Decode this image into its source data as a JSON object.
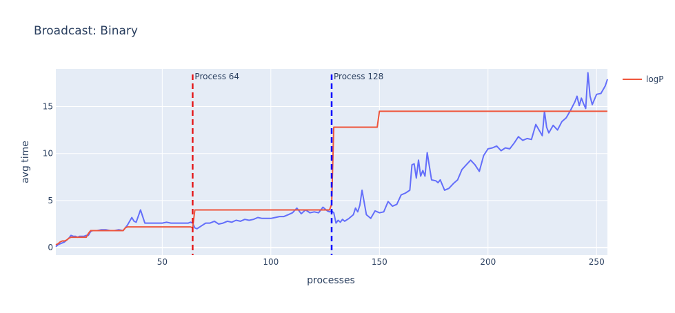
{
  "chart_data": {
    "type": "line",
    "title": "Broadcast: Binary",
    "xlabel": "processes",
    "ylabel": "avg time",
    "xlim": [
      1,
      255
    ],
    "ylim": [
      -0.8,
      19
    ],
    "x_ticks": [
      50,
      100,
      150,
      200,
      250
    ],
    "y_ticks": [
      0,
      5,
      10,
      15
    ],
    "grid": true,
    "legend": {
      "placement": "top-right",
      "entries": [
        "logP"
      ]
    },
    "colors": {
      "series_blue": "#636efa",
      "logP": "#ef553b",
      "plot_bg": "#e5ecf6",
      "vline_64": "#e41a1c",
      "vline_128": "#0000ff"
    },
    "series": [
      {
        "color": "#636efa",
        "x": [
          1,
          2,
          3,
          4,
          5,
          6,
          7,
          8,
          9,
          10,
          11,
          12,
          13,
          14,
          15,
          16,
          17,
          18,
          19,
          20,
          22,
          24,
          26,
          28,
          30,
          32,
          34,
          36,
          37,
          38,
          40,
          42,
          44,
          46,
          48,
          50,
          52,
          54,
          56,
          58,
          60,
          62,
          63,
          64,
          65,
          66,
          68,
          70,
          72,
          74,
          76,
          78,
          80,
          82,
          84,
          86,
          88,
          90,
          92,
          94,
          96,
          98,
          100,
          102,
          104,
          106,
          108,
          110,
          112,
          114,
          116,
          118,
          120,
          122,
          124,
          126,
          127,
          128,
          129,
          130,
          131,
          132,
          133,
          134,
          136,
          137,
          138,
          139,
          140,
          141,
          142,
          144,
          146,
          148,
          150,
          152,
          154,
          156,
          158,
          160,
          162,
          164,
          165,
          166,
          167,
          168,
          169,
          170,
          171,
          172,
          174,
          176,
          177,
          178,
          180,
          182,
          184,
          186,
          188,
          190,
          192,
          194,
          196,
          198,
          200,
          202,
          204,
          206,
          208,
          210,
          212,
          214,
          216,
          218,
          220,
          222,
          224,
          225,
          226,
          227,
          228,
          230,
          232,
          234,
          236,
          238,
          240,
          241,
          242,
          243,
          244,
          245,
          246,
          247,
          248,
          250,
          252,
          254,
          255
        ],
        "y": [
          0.1,
          0.3,
          0.4,
          0.5,
          0.6,
          0.8,
          1.0,
          1.3,
          1.2,
          1.2,
          1.1,
          1.2,
          1.2,
          1.2,
          1.3,
          1.3,
          1.7,
          1.8,
          1.8,
          1.8,
          1.9,
          1.9,
          1.8,
          1.8,
          1.9,
          1.8,
          2.4,
          3.2,
          2.8,
          2.7,
          4.0,
          2.6,
          2.6,
          2.6,
          2.6,
          2.6,
          2.7,
          2.6,
          2.6,
          2.6,
          2.6,
          2.6,
          2.7,
          2.6,
          2.1,
          2.0,
          2.3,
          2.6,
          2.6,
          2.8,
          2.5,
          2.6,
          2.8,
          2.7,
          2.9,
          2.8,
          3.0,
          2.9,
          3.0,
          3.2,
          3.1,
          3.1,
          3.1,
          3.2,
          3.3,
          3.3,
          3.5,
          3.7,
          4.2,
          3.6,
          4.0,
          3.7,
          3.8,
          3.7,
          4.3,
          3.9,
          3.8,
          3.9,
          3.7,
          2.6,
          2.9,
          2.7,
          3.0,
          2.8,
          3.1,
          3.3,
          3.5,
          4.2,
          3.8,
          4.5,
          6.1,
          3.5,
          3.1,
          3.9,
          3.7,
          3.8,
          4.9,
          4.4,
          4.6,
          5.6,
          5.8,
          6.1,
          8.8,
          8.9,
          7.4,
          9.3,
          7.6,
          8.2,
          7.6,
          10.1,
          7.2,
          7.1,
          6.9,
          7.2,
          6.1,
          6.3,
          6.8,
          7.2,
          8.3,
          8.8,
          9.3,
          8.8,
          8.1,
          9.8,
          10.5,
          10.6,
          10.8,
          10.3,
          10.6,
          10.5,
          11.1,
          11.8,
          11.4,
          11.6,
          11.5,
          13.1,
          12.3,
          11.9,
          14.5,
          12.8,
          12.2,
          13.0,
          12.5,
          13.4,
          13.8,
          14.6,
          15.5,
          16.1,
          15.1,
          15.9,
          15.3,
          14.8,
          18.6,
          16.1,
          15.2,
          16.3,
          16.4,
          17.2,
          17.9
        ]
      },
      {
        "name": "logP",
        "color": "#ef553b",
        "x": [
          1,
          2,
          3,
          4,
          5,
          6,
          7,
          8,
          9,
          10,
          11,
          12,
          13,
          14,
          15,
          16,
          17,
          18,
          19,
          20,
          32,
          33,
          34,
          63,
          64,
          65,
          127,
          128,
          129,
          149,
          150,
          255
        ],
        "y": [
          0.3,
          0.4,
          0.6,
          0.7,
          0.7,
          0.8,
          1.0,
          1.1,
          1.1,
          1.1,
          1.1,
          1.1,
          1.1,
          1.1,
          1.1,
          1.5,
          1.8,
          1.8,
          1.8,
          1.8,
          1.8,
          2.1,
          2.2,
          2.2,
          2.1,
          4.0,
          4.0,
          4.6,
          12.8,
          12.8,
          14.5,
          14.5
        ]
      }
    ],
    "vlines": [
      {
        "x": 64,
        "label": "Process 64",
        "color": "#e41a1c"
      },
      {
        "x": 128,
        "label": "Process 128",
        "color": "#0000ff"
      }
    ]
  }
}
